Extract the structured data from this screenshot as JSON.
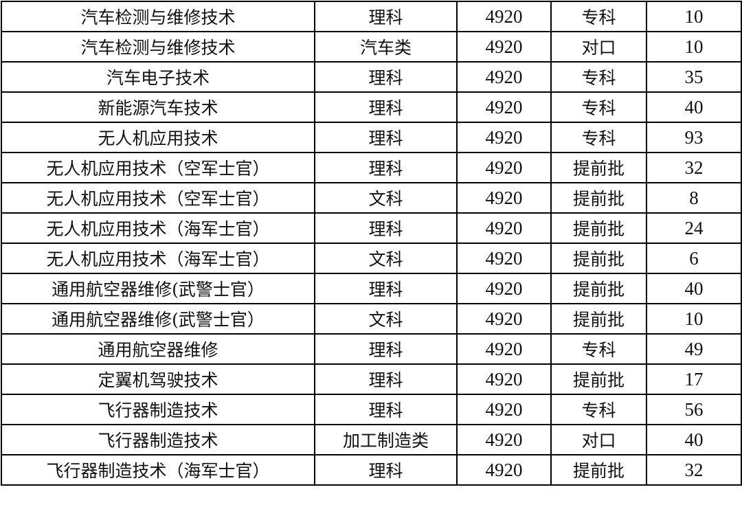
{
  "rows": [
    [
      "汽车检测与维修技术",
      "理科",
      "4920",
      "专科",
      "10"
    ],
    [
      "汽车检测与维修技术",
      "汽车类",
      "4920",
      "对口",
      "10"
    ],
    [
      "汽车电子技术",
      "理科",
      "4920",
      "专科",
      "35"
    ],
    [
      "新能源汽车技术",
      "理科",
      "4920",
      "专科",
      "40"
    ],
    [
      "无人机应用技术",
      "理科",
      "4920",
      "专科",
      "93"
    ],
    [
      "无人机应用技术（空军士官）",
      "理科",
      "4920",
      "提前批",
      "32"
    ],
    [
      "无人机应用技术（空军士官）",
      "文科",
      "4920",
      "提前批",
      "8"
    ],
    [
      "无人机应用技术（海军士官）",
      "理科",
      "4920",
      "提前批",
      "24"
    ],
    [
      "无人机应用技术（海军士官）",
      "文科",
      "4920",
      "提前批",
      "6"
    ],
    [
      "通用航空器维修(武警士官）",
      "理科",
      "4920",
      "提前批",
      "40"
    ],
    [
      "通用航空器维修(武警士官）",
      "文科",
      "4920",
      "提前批",
      "10"
    ],
    [
      "通用航空器维修",
      "理科",
      "4920",
      "专科",
      "49"
    ],
    [
      "定翼机驾驶技术",
      "理科",
      "4920",
      "提前批",
      "17"
    ],
    [
      "飞行器制造技术",
      "理科",
      "4920",
      "专科",
      "56"
    ],
    [
      "飞行器制造技术",
      "加工制造类",
      "4920",
      "对口",
      "40"
    ],
    [
      "飞行器制造技术（海军士官）",
      "理科",
      "4920",
      "提前批",
      "32"
    ]
  ]
}
